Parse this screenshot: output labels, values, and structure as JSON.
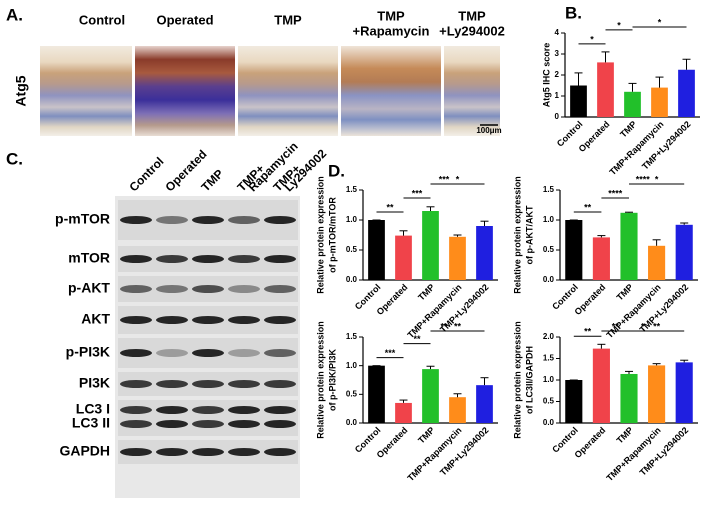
{
  "panel_a": {
    "label": "A.",
    "row_label": "Atg5",
    "columns": [
      [
        "Control"
      ],
      [
        "Operated"
      ],
      [
        "TMP"
      ],
      [
        "TMP",
        "+Rapamycin"
      ],
      [
        "TMP",
        "+Ly294002"
      ]
    ],
    "scale_bar": "100μm"
  },
  "panel_c": {
    "label": "C.",
    "lanes": [
      [
        "Control"
      ],
      [
        "Operated"
      ],
      [
        "TMP"
      ],
      [
        "TMP+",
        "Rapamycin"
      ],
      [
        "TMP+",
        "Ly294002"
      ]
    ],
    "rows": [
      [
        "p-mTOR"
      ],
      [
        "mTOR"
      ],
      [
        "p-AKT"
      ],
      [
        "AKT"
      ],
      [
        "p-PI3K"
      ],
      [
        "PI3K"
      ],
      [
        "LC3 I",
        "LC3 II"
      ],
      [
        "GAPDH"
      ]
    ]
  },
  "chart_data": [
    {
      "type": "bar",
      "panel_label": "B.",
      "ylabel": [
        "Atg5 IHC score"
      ],
      "categories": [
        "Control",
        "Operated",
        "TMP",
        "TMP+Rapamycin",
        "TMP+Ly294002"
      ],
      "series": [
        {
          "values": [
            1.5,
            2.6,
            1.2,
            1.4,
            2.25
          ],
          "errors": [
            0.6,
            0.5,
            0.4,
            0.5,
            0.5
          ],
          "colors": [
            "#000000",
            "#f0434a",
            "#22c02a",
            "#ff8c1a",
            "#1f1fe0"
          ]
        }
      ],
      "ylim": [
        0,
        4
      ],
      "yticks": [
        0,
        1,
        2,
        3,
        4
      ],
      "significance": [
        {
          "between": [
            "Control",
            "Operated"
          ],
          "label": "*"
        },
        {
          "between": [
            "Operated",
            "TMP"
          ],
          "label": "*"
        },
        {
          "between": [
            "TMP",
            "TMP+Ly294002"
          ],
          "label": "*"
        }
      ]
    },
    {
      "type": "bar",
      "panel_label": "D.",
      "ylabel": [
        "Relative protein expression",
        "of p-mTOR/mTOR"
      ],
      "categories": [
        "Control",
        "Operated",
        "TMP",
        "TMP+Rapamycin",
        "TMP+Ly294002"
      ],
      "series": [
        {
          "values": [
            1.0,
            0.74,
            1.15,
            0.72,
            0.9
          ],
          "errors": [
            0,
            0.08,
            0.07,
            0.03,
            0.08
          ],
          "colors": [
            "#000000",
            "#f0434a",
            "#22c02a",
            "#ff8c1a",
            "#1f1fe0"
          ]
        }
      ],
      "ylim": [
        0,
        1.5
      ],
      "yticks": [
        {
          "value": 0,
          "label": "0.0"
        },
        0.5,
        {
          "value": 1,
          "label": "1.0"
        },
        1.5
      ],
      "significance": [
        {
          "between": [
            "Control",
            "Operated"
          ],
          "label": "**"
        },
        {
          "between": [
            "Operated",
            "TMP"
          ],
          "label": "***"
        },
        {
          "between": [
            "TMP",
            "TMP+Rapamycin"
          ],
          "label": "***"
        },
        {
          "between": [
            "TMP",
            "TMP+Ly294002"
          ],
          "label": "*"
        }
      ]
    },
    {
      "type": "bar",
      "ylabel": [
        "Relative protein expression",
        "of p-AKT/AKT"
      ],
      "categories": [
        "Control",
        "Operated",
        "TMP",
        "TMP+Rapamycin",
        "TMP+Ly294002"
      ],
      "series": [
        {
          "values": [
            1.0,
            0.71,
            1.12,
            0.57,
            0.92
          ],
          "errors": [
            0,
            0.03,
            0.01,
            0.1,
            0.03
          ],
          "colors": [
            "#000000",
            "#f0434a",
            "#22c02a",
            "#ff8c1a",
            "#1f1fe0"
          ]
        }
      ],
      "ylim": [
        0,
        1.5
      ],
      "yticks": [
        {
          "value": 0,
          "label": "0.0"
        },
        0.5,
        {
          "value": 1,
          "label": "1.0"
        },
        1.5
      ],
      "significance": [
        {
          "between": [
            "Control",
            "Operated"
          ],
          "label": "**"
        },
        {
          "between": [
            "Operated",
            "TMP"
          ],
          "label": "****"
        },
        {
          "between": [
            "TMP",
            "TMP+Rapamycin"
          ],
          "label": "****"
        },
        {
          "between": [
            "TMP",
            "TMP+Ly294002"
          ],
          "label": "*"
        }
      ]
    },
    {
      "type": "bar",
      "ylabel": [
        "Relative protein expression",
        "of p-PI3K/PI3K"
      ],
      "categories": [
        "Control",
        "Operated",
        "TMP",
        "TMP+Rapamycin",
        "TMP+Ly294002"
      ],
      "series": [
        {
          "values": [
            1.0,
            0.35,
            0.94,
            0.45,
            0.66
          ],
          "errors": [
            0,
            0.05,
            0.05,
            0.06,
            0.13
          ],
          "colors": [
            "#000000",
            "#f0434a",
            "#22c02a",
            "#ff8c1a",
            "#1f1fe0"
          ]
        }
      ],
      "ylim": [
        0,
        1.5
      ],
      "yticks": [
        {
          "value": 0,
          "label": "0.0"
        },
        0.5,
        {
          "value": 1,
          "label": "1.0"
        },
        1.5
      ],
      "significance": [
        {
          "between": [
            "Control",
            "Operated"
          ],
          "label": "***"
        },
        {
          "between": [
            "Operated",
            "TMP"
          ],
          "label": "**"
        },
        {
          "between": [
            "TMP",
            "TMP+Rapamycin"
          ],
          "label": "**"
        },
        {
          "between": [
            "TMP",
            "TMP+Ly294002"
          ],
          "label": "**"
        }
      ]
    },
    {
      "type": "bar",
      "ylabel": [
        "Relative protein expression",
        "of LC3II/GAPDH"
      ],
      "categories": [
        "Control",
        "Operated",
        "TMP",
        "TMP+Rapamycin",
        "TMP+Ly294002"
      ],
      "series": [
        {
          "values": [
            1.0,
            1.73,
            1.14,
            1.34,
            1.41
          ],
          "errors": [
            0,
            0.1,
            0.06,
            0.04,
            0.05
          ],
          "colors": [
            "#000000",
            "#f0434a",
            "#22c02a",
            "#ff8c1a",
            "#1f1fe0"
          ]
        }
      ],
      "ylim": [
        0,
        2
      ],
      "yticks": [
        {
          "value": 0,
          "label": "0.0"
        },
        0.5,
        {
          "value": 1,
          "label": "1.0"
        },
        1.5,
        {
          "value": 2,
          "label": "2.0"
        }
      ],
      "significance": [
        {
          "between": [
            "Control",
            "Operated"
          ],
          "label": "**"
        },
        {
          "between": [
            "Operated",
            "TMP"
          ],
          "label": "**"
        },
        {
          "between": [
            "TMP",
            "TMP+Rapamycin"
          ],
          "label": "*"
        },
        {
          "between": [
            "TMP",
            "TMP+Ly294002"
          ],
          "label": "**"
        }
      ]
    }
  ]
}
